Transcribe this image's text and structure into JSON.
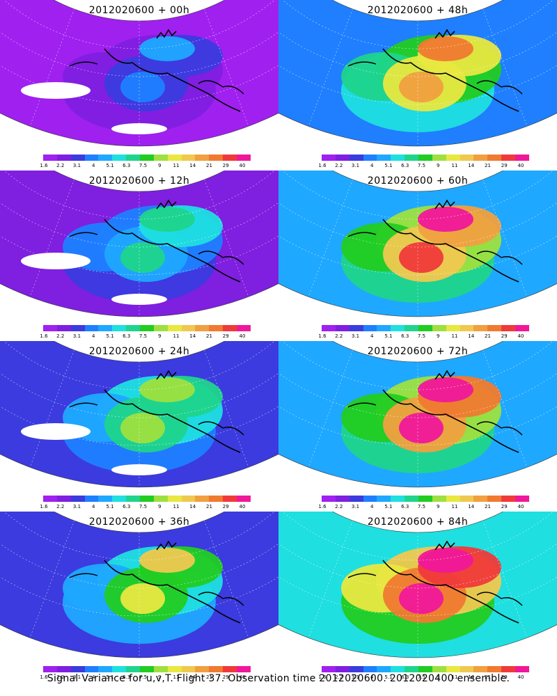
{
  "caption": "Signal Variance for u,v,T. Flight 37. Observation time 2012020600. 2012020400 ensemble.",
  "colorbar": {
    "colors": [
      "#a020f0",
      "#7f1fe0",
      "#3b3bdf",
      "#1f7fff",
      "#1fa8ff",
      "#1fdfe0",
      "#1fd48c",
      "#22cc22",
      "#9de040",
      "#e8e840",
      "#f0c850",
      "#f0a040",
      "#f07a30",
      "#f03a3a",
      "#f0189a"
    ],
    "labels": [
      "1.6",
      "2.2",
      "3.1",
      "4",
      "5.1",
      "6.3",
      "7.5",
      "9",
      "11",
      "14",
      "21",
      "29",
      "40"
    ]
  },
  "panels": [
    {
      "title": "2012020600 + 00h",
      "intensity": 0.05
    },
    {
      "title": "2012020600 + 48h",
      "intensity": 0.62
    },
    {
      "title": "2012020600 + 12h",
      "intensity": 0.2
    },
    {
      "title": "2012020600 + 60h",
      "intensity": 0.72
    },
    {
      "title": "2012020600 + 24h",
      "intensity": 0.33
    },
    {
      "title": "2012020600 + 72h",
      "intensity": 0.82
    },
    {
      "title": "2012020600 + 36h",
      "intensity": 0.45
    },
    {
      "title": "2012020600 + 84h",
      "intensity": 0.9
    }
  ]
}
